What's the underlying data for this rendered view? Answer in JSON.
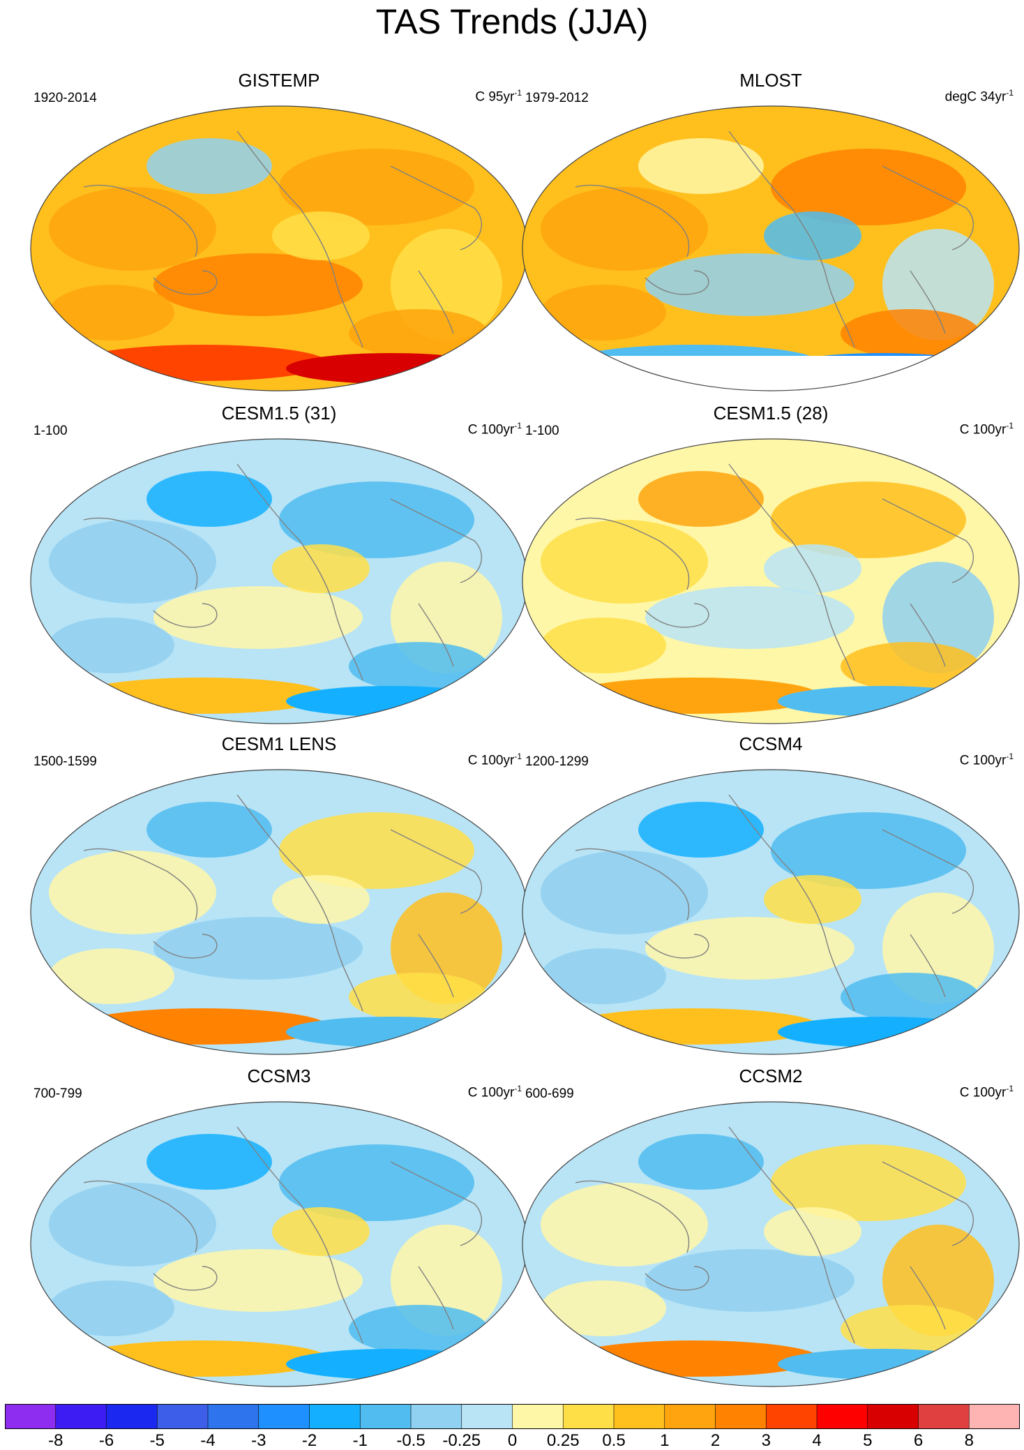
{
  "title": "TAS Trends (JJA)",
  "panels": [
    {
      "title": "GISTEMP",
      "period": "1920-2014",
      "unit": "C 95yr",
      "unit_sup": "-1",
      "pattern": "obs_warm",
      "has_antarctic_mask": false
    },
    {
      "title": "MLOST",
      "period": "1979-2012",
      "unit": "degC 34yr",
      "unit_sup": "-1",
      "pattern": "obs_warm_recent",
      "has_antarctic_mask": true
    },
    {
      "title": "CESM1.5 (31)",
      "period": "1-100",
      "unit": "C 100yr",
      "unit_sup": "-1",
      "pattern": "mixed_cool",
      "has_antarctic_mask": false
    },
    {
      "title": "CESM1.5 (28)",
      "period": "1-100",
      "unit": "C 100yr",
      "unit_sup": "-1",
      "pattern": "mixed_warm",
      "has_antarctic_mask": false
    },
    {
      "title": "CESM1 LENS",
      "period": "1500-1599",
      "unit": "C 100yr",
      "unit_sup": "-1",
      "pattern": "mixed",
      "has_antarctic_mask": false
    },
    {
      "title": "CCSM4",
      "period": "1200-1299",
      "unit": "C 100yr",
      "unit_sup": "-1",
      "pattern": "mixed_cool",
      "has_antarctic_mask": false
    },
    {
      "title": "CCSM3",
      "period": "700-799",
      "unit": "C 100yr",
      "unit_sup": "-1",
      "pattern": "mixed_cool",
      "has_antarctic_mask": false
    },
    {
      "title": "CCSM2",
      "period": "600-699",
      "unit": "C 100yr",
      "unit_sup": "-1",
      "pattern": "mixed",
      "has_antarctic_mask": false
    }
  ],
  "colorbar": {
    "labels": [
      "-8",
      "-6",
      "-5",
      "-4",
      "-3",
      "-2",
      "-1",
      "-0.5",
      "-0.25",
      "0",
      "0.25",
      "0.5",
      "1",
      "2",
      "3",
      "4",
      "5",
      "6",
      "8"
    ],
    "colors": [
      "#8e2cf0",
      "#3c1cf2",
      "#1a28f0",
      "#3c5ee8",
      "#2e74ec",
      "#1e90ff",
      "#14b0ff",
      "#50bcf0",
      "#90d0f0",
      "#b8e4f6",
      "#fff7a8",
      "#ffdf48",
      "#ffc01e",
      "#ffa40e",
      "#ff8200",
      "#ff4400",
      "#ff0000",
      "#d80000",
      "#e04040",
      "#ffb4b4"
    ]
  }
}
